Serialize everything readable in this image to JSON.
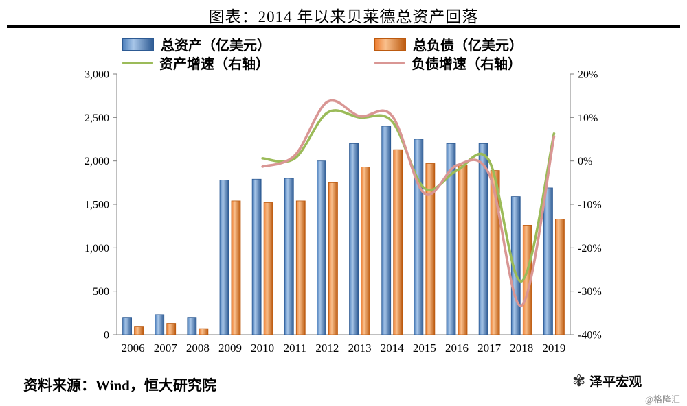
{
  "page": {
    "title": "图表：2014 年以来贝莱德总资产回落",
    "source": "资料来源：Wind，恒大研究院",
    "brand": "泽平宏观",
    "brand_handle": "@格隆汇"
  },
  "icons": {
    "brand_seal": "✾"
  },
  "chart_data": {
    "type": "bar",
    "title": "图表：2014 年以来贝莱德总资产回落",
    "categories": [
      "2006",
      "2007",
      "2008",
      "2009",
      "2010",
      "2011",
      "2012",
      "2013",
      "2014",
      "2015",
      "2016",
      "2017",
      "2018",
      "2019"
    ],
    "series": [
      {
        "name": "总资产（亿美元）",
        "type": "bar",
        "axis": "left",
        "color": "#4f81bd",
        "color_light": "#a8c6e8",
        "color_dark": "#2d5a93",
        "values": [
          200,
          230,
          200,
          1780,
          1790,
          1800,
          2000,
          2200,
          2400,
          2250,
          2200,
          2200,
          1590,
          1690
        ]
      },
      {
        "name": "总负债（亿美元）",
        "type": "bar",
        "axis": "left",
        "color": "#ed7d31",
        "color_light": "#f9c08d",
        "color_dark": "#bc5a0f",
        "values": [
          90,
          130,
          70,
          1540,
          1520,
          1540,
          1750,
          1930,
          2130,
          1970,
          1950,
          1890,
          1260,
          1330
        ]
      },
      {
        "name": "资产增速（右轴）",
        "type": "line",
        "axis": "right",
        "color": "#9bbb59",
        "values": [
          null,
          null,
          null,
          null,
          0.6,
          0.6,
          11.1,
          10.0,
          9.1,
          -6.3,
          -2.2,
          0.0,
          -27.7,
          6.3
        ]
      },
      {
        "name": "负债增速（右轴）",
        "type": "line",
        "axis": "right",
        "color": "#d99694",
        "values": [
          null,
          null,
          null,
          null,
          -1.3,
          1.3,
          13.6,
          10.3,
          10.4,
          -7.5,
          -1.0,
          -3.1,
          -33.3,
          5.6
        ]
      }
    ],
    "left_axis": {
      "min": 0,
      "max": 3000,
      "tick_labels": [
        "3,000",
        "2,500",
        "2,000",
        "1,500",
        "1,000",
        "500",
        "0"
      ]
    },
    "right_axis": {
      "min": -40,
      "max": 20,
      "tick_labels": [
        "20%",
        "10%",
        "0%",
        "-10%",
        "-20%",
        "-30%",
        "-40%"
      ]
    },
    "legend_position": "top",
    "grid": false
  }
}
